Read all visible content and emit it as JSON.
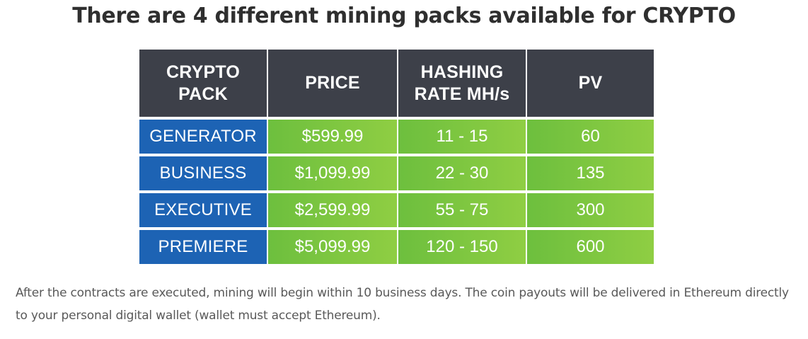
{
  "title": "There are 4 different mining packs available for CRYPTO",
  "table": {
    "headers": [
      "CRYPTO PACK",
      "PRICE",
      "HASHING RATE MH/s",
      "PV"
    ],
    "rows": [
      {
        "pack": "GENERATOR",
        "price": "$599.99",
        "hashing_rate": "11 - 15",
        "pv": "60"
      },
      {
        "pack": "BUSINESS",
        "price": "$1,099.99",
        "hashing_rate": "22 - 30",
        "pv": "135"
      },
      {
        "pack": "EXECUTIVE",
        "price": "$2,599.99",
        "hashing_rate": "55 - 75",
        "pv": "300"
      },
      {
        "pack": "PREMIERE",
        "price": "$5,099.99",
        "hashing_rate": "120 - 150",
        "pv": "600"
      }
    ]
  },
  "note": "After the contracts are executed, mining will begin within 10 business days. The coin payouts will be delivered in Ethereum directly to your personal digital wallet (wallet must accept Ethereum).",
  "colors": {
    "header_bg": "#3d4049",
    "pack_bg": "#1d63b4",
    "value_bg_start": "#6dbf3e",
    "value_bg_end": "#8fce43",
    "title_text": "#2f2f2f",
    "note_text": "#595959"
  }
}
